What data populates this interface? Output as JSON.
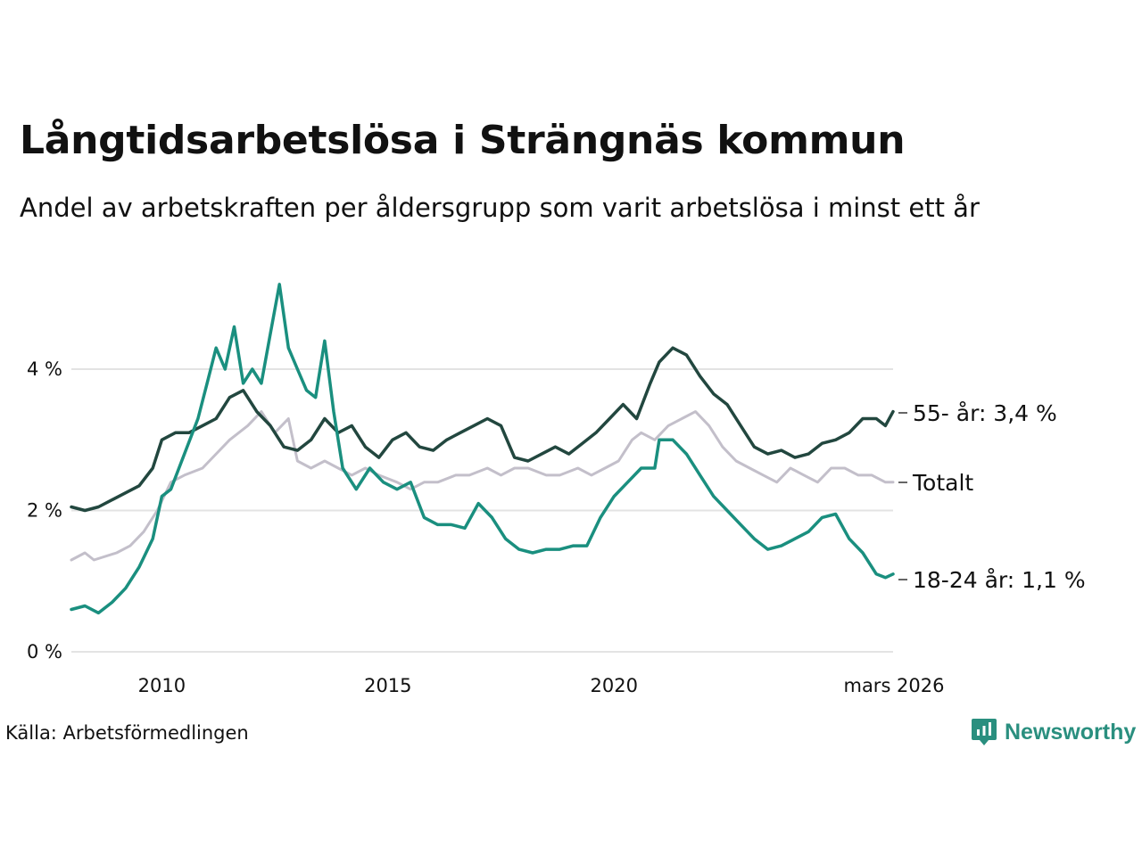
{
  "title": "Långtidsarbetslösa i Strängnäs kommun",
  "subtitle": "Andel av arbetskraften per åldersgrupp som varit arbetslösa i minst ett år",
  "source": "Källa: Arbetsförmedlingen",
  "brand": {
    "name": "Newsworthy"
  },
  "colors": {
    "age_55": "#22473f",
    "total": "#c3bfca",
    "age_18_24": "#1a8f7f",
    "grid": "#e3e3e3",
    "brand": "#2a8f7f"
  },
  "chart_data": {
    "type": "line",
    "title": "Långtidsarbetslösa i Strängnäs kommun",
    "xlabel": "",
    "ylabel": "",
    "x_range": [
      2008.0,
      2026.17
    ],
    "ylim": [
      0,
      5.5
    ],
    "yticks": [
      0,
      2,
      4
    ],
    "ytick_labels": [
      "0 %",
      "2 %",
      "4 %"
    ],
    "xticks": [
      2010,
      2015,
      2020,
      2026.17
    ],
    "xtick_labels": [
      "2010",
      "2015",
      "2020",
      "mars 2026"
    ],
    "grid": true,
    "legend": "end-labels-right",
    "series": [
      {
        "name": "Totalt",
        "label": "Totalt",
        "x": [
          2008.0,
          2008.3,
          2008.5,
          2009.0,
          2009.3,
          2009.6,
          2009.9,
          2010.2,
          2010.5,
          2010.9,
          2011.2,
          2011.5,
          2011.9,
          2012.2,
          2012.5,
          2012.8,
          2013.0,
          2013.3,
          2013.6,
          2013.9,
          2014.2,
          2014.5,
          2014.8,
          2015.2,
          2015.5,
          2015.8,
          2016.1,
          2016.5,
          2016.8,
          2017.2,
          2017.5,
          2017.8,
          2018.1,
          2018.5,
          2018.8,
          2019.2,
          2019.5,
          2019.8,
          2020.1,
          2020.4,
          2020.6,
          2020.9,
          2021.2,
          2021.5,
          2021.8,
          2022.1,
          2022.4,
          2022.7,
          2023.0,
          2023.3,
          2023.6,
          2023.9,
          2024.2,
          2024.5,
          2024.8,
          2025.1,
          2025.4,
          2025.7,
          2026.0,
          2026.17
        ],
        "y": [
          1.3,
          1.4,
          1.3,
          1.4,
          1.5,
          1.7,
          2.0,
          2.4,
          2.5,
          2.6,
          2.8,
          3.0,
          3.2,
          3.4,
          3.1,
          3.3,
          2.7,
          2.6,
          2.7,
          2.6,
          2.5,
          2.6,
          2.5,
          2.4,
          2.3,
          2.4,
          2.4,
          2.5,
          2.5,
          2.6,
          2.5,
          2.6,
          2.6,
          2.5,
          2.5,
          2.6,
          2.5,
          2.6,
          2.7,
          3.0,
          3.1,
          3.0,
          3.2,
          3.3,
          3.4,
          3.2,
          2.9,
          2.7,
          2.6,
          2.5,
          2.4,
          2.6,
          2.5,
          2.4,
          2.6,
          2.6,
          2.5,
          2.5,
          2.4,
          2.4
        ],
        "end_label": "Totalt"
      },
      {
        "name": "55- år",
        "label": "55- år: 3,4 %",
        "x": [
          2008.0,
          2008.3,
          2008.6,
          2008.9,
          2009.2,
          2009.5,
          2009.8,
          2010.0,
          2010.3,
          2010.6,
          2010.9,
          2011.2,
          2011.5,
          2011.8,
          2012.1,
          2012.4,
          2012.7,
          2013.0,
          2013.3,
          2013.6,
          2013.9,
          2014.2,
          2014.5,
          2014.8,
          2015.1,
          2015.4,
          2015.7,
          2016.0,
          2016.3,
          2016.6,
          2016.9,
          2017.2,
          2017.5,
          2017.8,
          2018.1,
          2018.4,
          2018.7,
          2019.0,
          2019.3,
          2019.6,
          2019.9,
          2020.2,
          2020.5,
          2020.8,
          2021.0,
          2021.3,
          2021.6,
          2021.9,
          2022.2,
          2022.5,
          2022.8,
          2023.1,
          2023.4,
          2023.7,
          2024.0,
          2024.3,
          2024.6,
          2024.9,
          2025.2,
          2025.5,
          2025.8,
          2026.0,
          2026.17
        ],
        "y": [
          2.05,
          2.0,
          2.05,
          2.15,
          2.25,
          2.35,
          2.6,
          3.0,
          3.1,
          3.1,
          3.2,
          3.3,
          3.6,
          3.7,
          3.4,
          3.2,
          2.9,
          2.85,
          3.0,
          3.3,
          3.1,
          3.2,
          2.9,
          2.75,
          3.0,
          3.1,
          2.9,
          2.85,
          3.0,
          3.1,
          3.2,
          3.3,
          3.2,
          2.75,
          2.7,
          2.8,
          2.9,
          2.8,
          2.95,
          3.1,
          3.3,
          3.5,
          3.3,
          3.8,
          4.1,
          4.3,
          4.2,
          3.9,
          3.65,
          3.5,
          3.2,
          2.9,
          2.8,
          2.85,
          2.75,
          2.8,
          2.95,
          3.0,
          3.1,
          3.3,
          3.3,
          3.2,
          3.4
        ],
        "end_label": "55- år: 3,4 %"
      },
      {
        "name": "18-24 år",
        "label": "18-24 år: 1,1 %",
        "x": [
          2008.0,
          2008.3,
          2008.6,
          2008.9,
          2009.2,
          2009.5,
          2009.8,
          2010.0,
          2010.2,
          2010.5,
          2010.8,
          2011.0,
          2011.2,
          2011.4,
          2011.6,
          2011.8,
          2012.0,
          2012.2,
          2012.4,
          2012.6,
          2012.8,
          2013.0,
          2013.2,
          2013.4,
          2013.6,
          2013.8,
          2014.0,
          2014.3,
          2014.6,
          2014.9,
          2015.2,
          2015.5,
          2015.8,
          2016.1,
          2016.4,
          2016.7,
          2017.0,
          2017.3,
          2017.6,
          2017.9,
          2018.2,
          2018.5,
          2018.8,
          2019.1,
          2019.4,
          2019.7,
          2020.0,
          2020.3,
          2020.6,
          2020.9,
          2021.0,
          2021.3,
          2021.6,
          2021.9,
          2022.2,
          2022.5,
          2022.8,
          2023.1,
          2023.4,
          2023.7,
          2024.0,
          2024.3,
          2024.6,
          2024.9,
          2025.2,
          2025.5,
          2025.8,
          2026.0,
          2026.17
        ],
        "y": [
          0.6,
          0.65,
          0.55,
          0.7,
          0.9,
          1.2,
          1.6,
          2.2,
          2.3,
          2.8,
          3.3,
          3.8,
          4.3,
          4.0,
          4.6,
          3.8,
          4.0,
          3.8,
          4.5,
          5.2,
          4.3,
          4.0,
          3.7,
          3.6,
          4.4,
          3.4,
          2.6,
          2.3,
          2.6,
          2.4,
          2.3,
          2.4,
          1.9,
          1.8,
          1.8,
          1.75,
          2.1,
          1.9,
          1.6,
          1.45,
          1.4,
          1.45,
          1.45,
          1.5,
          1.5,
          1.9,
          2.2,
          2.4,
          2.6,
          2.6,
          3.0,
          3.0,
          2.8,
          2.5,
          2.2,
          2.0,
          1.8,
          1.6,
          1.45,
          1.5,
          1.6,
          1.7,
          1.9,
          1.95,
          1.6,
          1.4,
          1.1,
          1.05,
          1.1
        ],
        "end_label": "18-24 år: 1,1 %"
      }
    ]
  }
}
